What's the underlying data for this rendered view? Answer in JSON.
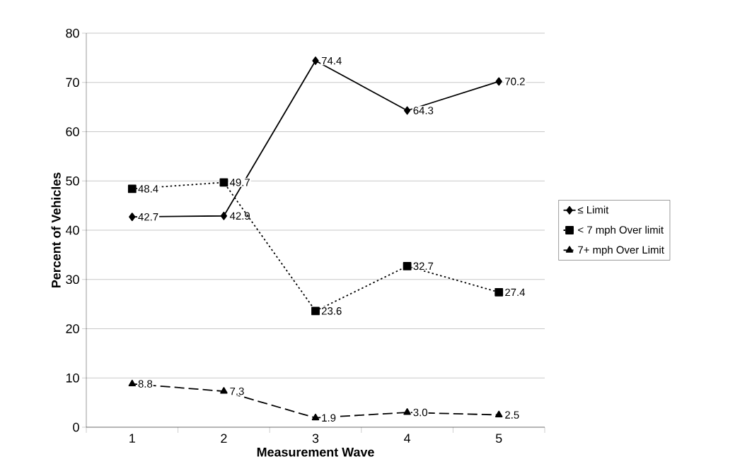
{
  "chart_data": {
    "type": "line",
    "xlabel": "Measurement Wave",
    "ylabel": "Percent of Vehicles",
    "categories": [
      "1",
      "2",
      "3",
      "4",
      "5"
    ],
    "series": [
      {
        "name": "≤ Limit",
        "color": "#000000",
        "marker": "diamond",
        "line_style": "solid",
        "values": [
          42.7,
          42.9,
          74.4,
          64.3,
          70.2
        ],
        "value_labels": [
          "42.7",
          "42.9",
          "74.4",
          "64.3",
          "70.2"
        ]
      },
      {
        "name": "< 7 mph Over limit",
        "color": "#000000",
        "marker": "square",
        "line_style": "dotted",
        "values": [
          48.4,
          49.7,
          23.6,
          32.7,
          27.4
        ],
        "value_labels": [
          "48.4",
          "49.7",
          "23.6",
          "32.7",
          "27.4"
        ]
      },
      {
        "name": "7+ mph Over Limit",
        "color": "#000000",
        "marker": "triangle",
        "line_style": "dashed",
        "values": [
          8.8,
          7.3,
          1.9,
          3.0,
          2.5
        ],
        "value_labels": [
          "8.8",
          "7.3",
          "1.9",
          "3.0",
          "2.5"
        ]
      }
    ],
    "ylim": [
      0,
      80
    ],
    "yticks": [
      0,
      10,
      20,
      30,
      40,
      50,
      60,
      70,
      80
    ],
    "grid": "y",
    "legend": "right"
  }
}
